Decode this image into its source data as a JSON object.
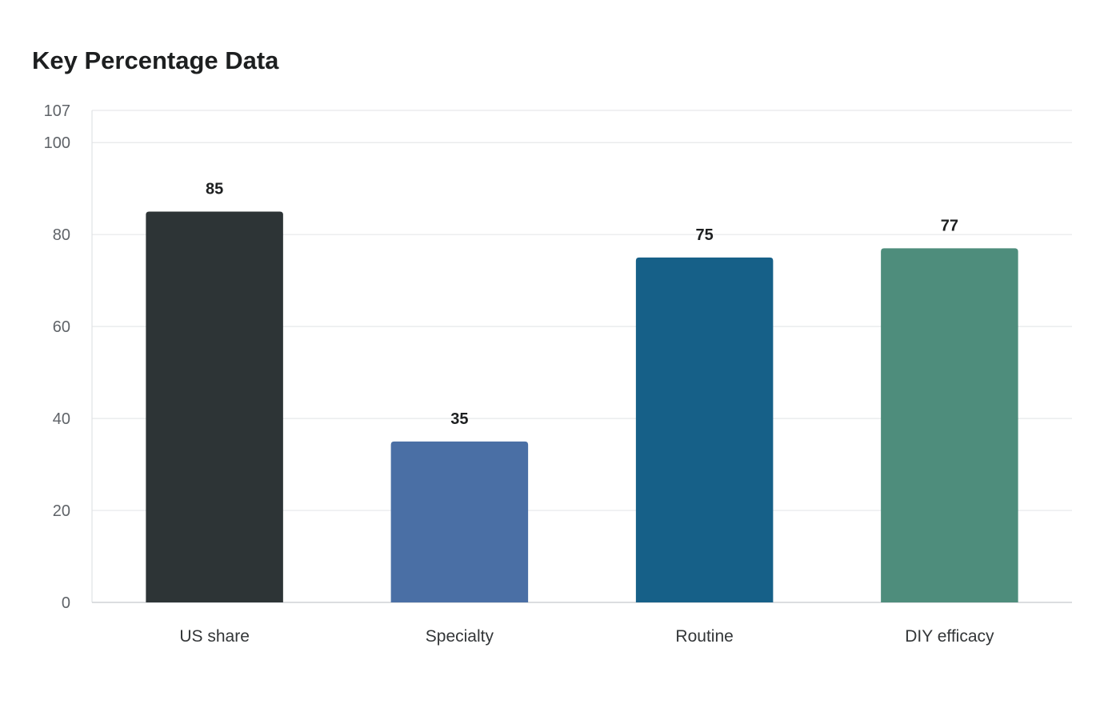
{
  "chart_data": {
    "type": "bar",
    "title": "Key Percentage Data",
    "xlabel": "",
    "ylabel": "",
    "categories": [
      "US share",
      "Specialty",
      "Routine",
      "DIY efficacy"
    ],
    "values": [
      85,
      35,
      75,
      77
    ],
    "colors": [
      "#2d3436",
      "#4a6fa5",
      "#166088",
      "#4e8d7c"
    ],
    "ylim": [
      0,
      107
    ],
    "yticks": [
      0,
      20,
      40,
      60,
      80,
      100,
      107
    ],
    "grid": true,
    "legend": "none"
  }
}
